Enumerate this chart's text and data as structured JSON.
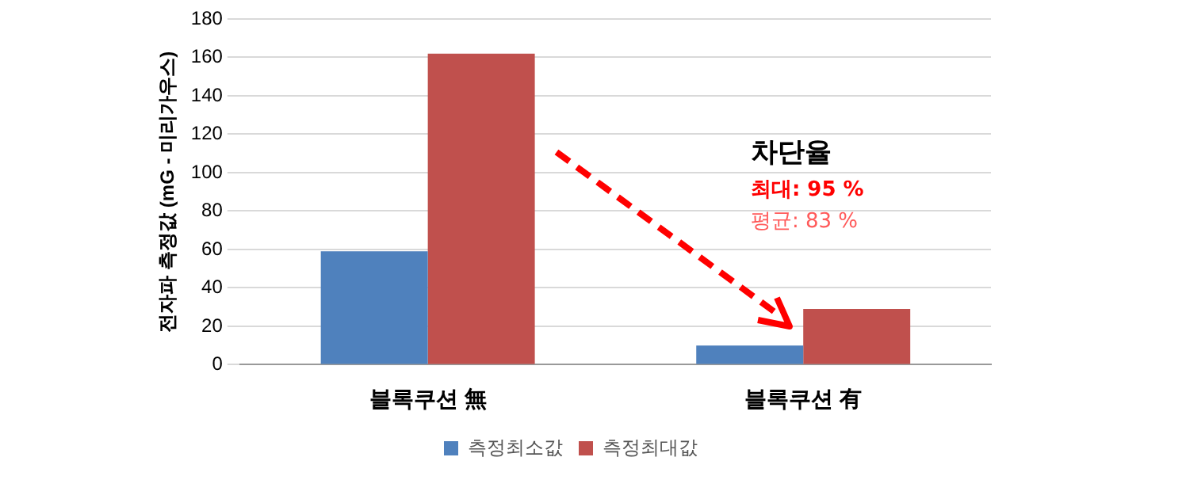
{
  "chart_data": {
    "type": "bar",
    "ylabel": "전자파 측정값 (mG - 미리가우스)",
    "categories": [
      "블록쿠션 無",
      "블록쿠션 有"
    ],
    "series": [
      {
        "name": "측정최소값",
        "color": "#4f81bd",
        "values": [
          59,
          10
        ]
      },
      {
        "name": "측정최대값",
        "color": "#c0504d",
        "values": [
          162,
          29
        ]
      }
    ],
    "ylim": [
      0,
      180
    ],
    "yticks": [
      0,
      20,
      40,
      60,
      80,
      100,
      120,
      140,
      160,
      180
    ],
    "grid": "y",
    "legend": "bottom",
    "annotations": [
      "차단율",
      "최대: 95 %",
      "평균: 83 %"
    ]
  }
}
